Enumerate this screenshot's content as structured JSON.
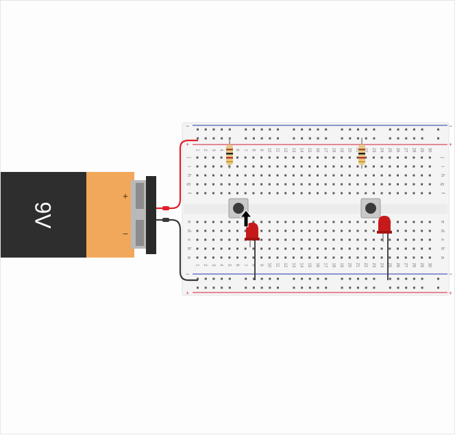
{
  "battery": {
    "label": "9V",
    "plus": "+",
    "minus": "−",
    "body_color": "#2e2e2e",
    "cap_color": "#f2a85a"
  },
  "breadboard": {
    "columns": [
      "1",
      "2",
      "3",
      "4",
      "5",
      "6",
      "7",
      "8",
      "9",
      "10",
      "11",
      "12",
      "13",
      "14",
      "15",
      "16",
      "17",
      "18",
      "19",
      "20",
      "21",
      "22",
      "23",
      "24",
      "25",
      "26",
      "27",
      "28",
      "29",
      "30"
    ],
    "rows_top": [
      "j",
      "i",
      "h",
      "g",
      "f"
    ],
    "rows_bottom": [
      "e",
      "d",
      "c",
      "b",
      "a"
    ],
    "rail_minus": "−",
    "rail_plus": "+",
    "red_rail_color": "#d9475b",
    "blue_rail_color": "#4a5bb8"
  },
  "components": {
    "resistor_color": "#e8c98a",
    "led_color": "#c61a1a",
    "wire_red": "#e0202a",
    "wire_black": "#3a3a3a"
  },
  "icons": {
    "cursor": "arrow-up-cursor-icon"
  }
}
